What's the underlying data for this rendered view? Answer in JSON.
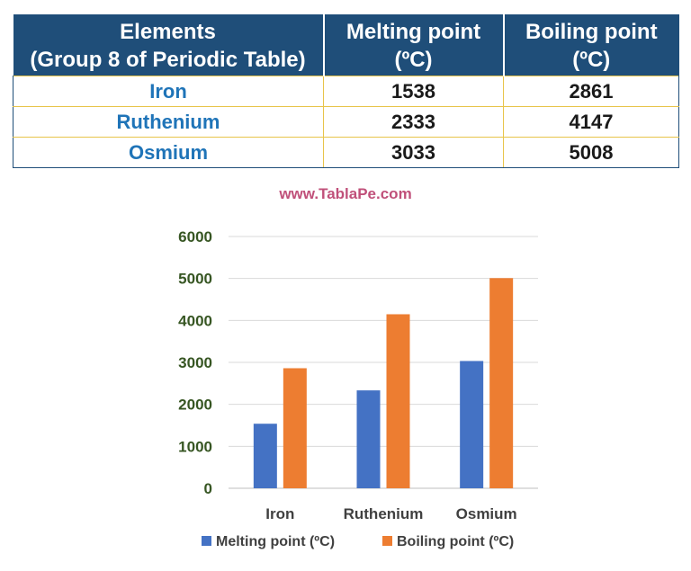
{
  "table": {
    "headers": [
      [
        "Elements",
        "(Group 8 of Periodic Table)"
      ],
      [
        "Melting point",
        "(ºC)"
      ],
      [
        "Boiling point",
        "(ºC)"
      ]
    ],
    "rows": [
      [
        "Iron",
        "1538",
        "2861"
      ],
      [
        "Ruthenium",
        "2333",
        "4147"
      ],
      [
        "Osmium",
        "3033",
        "5008"
      ]
    ]
  },
  "watermark": "www.TablaPe.com",
  "chart_data": {
    "type": "bar",
    "categories": [
      "Iron",
      "Ruthenium",
      "Osmium"
    ],
    "series": [
      {
        "name": "Melting point (ºC)",
        "values": [
          1538,
          2333,
          3033
        ],
        "color": "#4472c4"
      },
      {
        "name": "Boiling point (ºC)",
        "values": [
          2861,
          4147,
          5008
        ],
        "color": "#ed7d31"
      }
    ],
    "ylim": [
      0,
      6000
    ],
    "yticks": [
      0,
      1000,
      2000,
      3000,
      4000,
      5000,
      6000
    ],
    "grid": true,
    "legend": "bottom",
    "tick_color": "#375623",
    "title": "",
    "xlabel": "",
    "ylabel": ""
  }
}
